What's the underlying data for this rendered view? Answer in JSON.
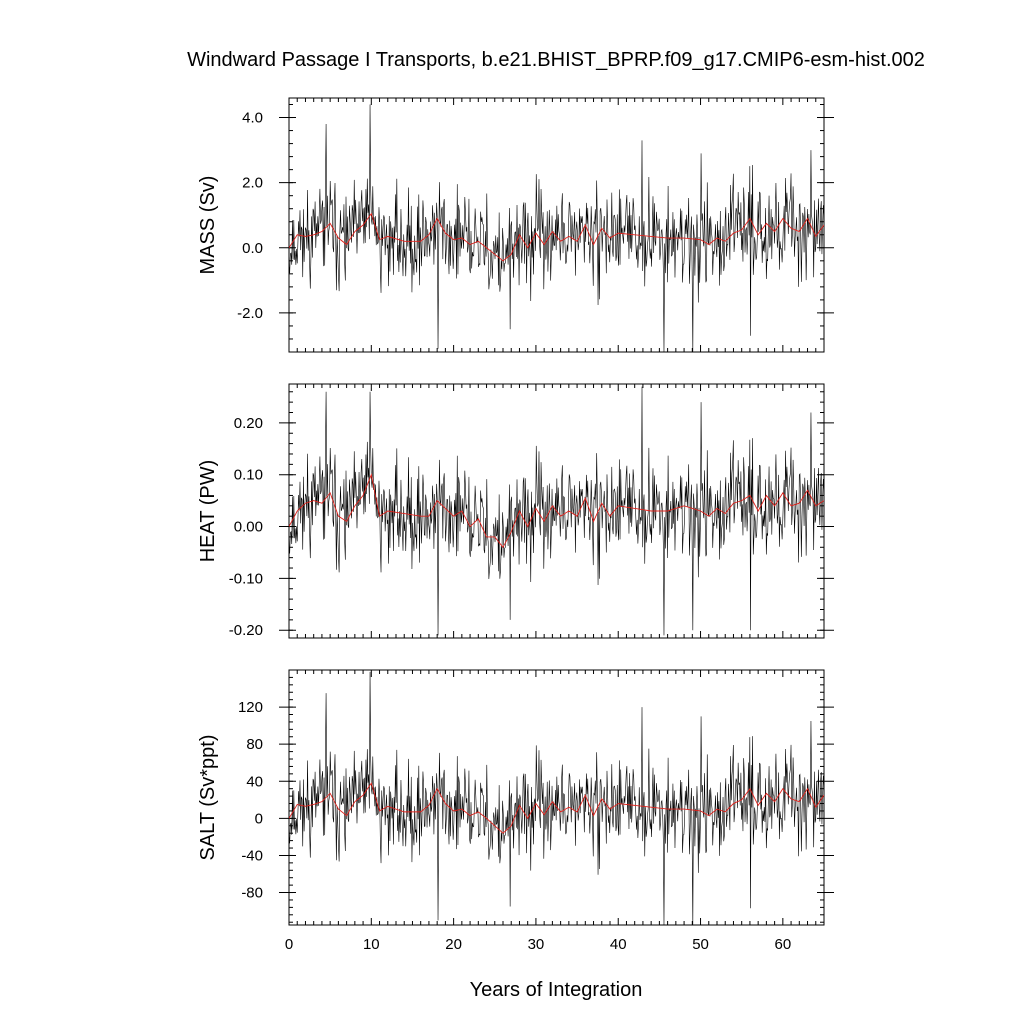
{
  "chart_data": {
    "type": "line",
    "title": "Windward Passage I Transports, b.e21.BHIST_BPRP.f09_g17.CMIP6-esm-hist.002",
    "xlabel": "Years of Integration",
    "xlim": [
      0,
      65
    ],
    "xticks": [
      0,
      10,
      20,
      30,
      40,
      50,
      60
    ],
    "xtick_labels": [
      "0",
      "10",
      "20",
      "30",
      "40",
      "50",
      "60"
    ],
    "colors": {
      "monthly": "#000000",
      "smoothed": "#e0201a"
    },
    "panels": [
      {
        "ylabel": "MASS (Sv)",
        "ylim": [
          -3.2,
          4.6
        ],
        "yticks": [
          -2.0,
          0.0,
          2.0,
          4.0
        ],
        "ytick_labels": [
          "-2.0",
          "0.0",
          "2.0",
          "4.0"
        ],
        "yminor": 0.4,
        "seed": 11,
        "noise_sd": 0.78,
        "spike_hi": [
          3.8,
          4.4,
          3.3,
          2.9,
          3.0
        ],
        "spike_lo": [
          -3.1,
          -3.2,
          -3.2,
          -2.7,
          -2.5
        ],
        "smoothed": {
          "x": [
            0,
            1,
            2,
            3,
            4,
            5,
            6,
            7,
            8,
            9,
            10,
            11,
            12,
            14,
            16,
            17,
            18,
            19,
            20,
            21,
            22,
            23,
            24,
            25,
            26,
            27,
            28,
            29,
            30,
            31,
            32,
            33,
            34,
            35,
            36,
            37,
            38,
            39,
            40,
            42,
            44,
            46,
            48,
            50,
            51,
            52,
            53,
            54,
            55,
            56,
            57,
            58,
            59,
            60,
            61,
            62,
            63,
            64,
            65
          ],
          "y": [
            0.0,
            0.4,
            0.35,
            0.4,
            0.5,
            0.75,
            0.3,
            0.1,
            0.5,
            0.7,
            1.05,
            0.25,
            0.35,
            0.2,
            0.2,
            0.4,
            0.9,
            0.45,
            0.25,
            0.3,
            0.1,
            0.2,
            0.0,
            -0.2,
            -0.4,
            -0.2,
            0.4,
            0.0,
            0.45,
            0.1,
            0.5,
            0.2,
            0.35,
            0.2,
            0.7,
            0.1,
            0.6,
            0.3,
            0.45,
            0.4,
            0.35,
            0.3,
            0.3,
            0.25,
            0.1,
            0.3,
            0.2,
            0.45,
            0.55,
            0.9,
            0.4,
            0.75,
            0.5,
            0.9,
            0.6,
            0.5,
            0.9,
            0.35,
            0.7
          ]
        }
      },
      {
        "ylabel": "HEAT (PW)",
        "ylim": [
          -0.215,
          0.275
        ],
        "yticks": [
          -0.2,
          -0.1,
          0.0,
          0.1,
          0.2
        ],
        "ytick_labels": [
          "-0.20",
          "-0.10",
          "0.00",
          "0.10",
          "0.20"
        ],
        "yminor": 0.02,
        "seed": 11,
        "noise_sd": 0.052,
        "spike_hi": [
          0.26,
          0.26,
          0.27,
          0.24,
          0.22
        ],
        "spike_lo": [
          -0.21,
          -0.21,
          -0.2,
          -0.2,
          -0.18
        ],
        "smoothed": {
          "x": [
            0,
            1,
            2,
            3,
            4,
            5,
            6,
            7,
            8,
            9,
            10,
            11,
            12,
            14,
            16,
            17,
            18,
            19,
            20,
            21,
            22,
            23,
            24,
            25,
            26,
            27,
            28,
            29,
            30,
            31,
            32,
            33,
            34,
            35,
            36,
            37,
            38,
            39,
            40,
            42,
            44,
            46,
            48,
            50,
            51,
            52,
            53,
            54,
            55,
            56,
            57,
            58,
            59,
            60,
            61,
            62,
            63,
            64,
            65
          ],
          "y": [
            0.0,
            0.03,
            0.045,
            0.05,
            0.045,
            0.065,
            0.02,
            0.01,
            0.04,
            0.06,
            0.1,
            0.02,
            0.03,
            0.025,
            0.02,
            0.02,
            0.05,
            0.035,
            0.02,
            0.03,
            0.0,
            0.015,
            -0.02,
            -0.02,
            -0.04,
            -0.01,
            0.03,
            0.0,
            0.035,
            0.01,
            0.04,
            0.02,
            0.03,
            0.02,
            0.055,
            0.01,
            0.045,
            0.02,
            0.04,
            0.035,
            0.03,
            0.03,
            0.04,
            0.03,
            0.02,
            0.035,
            0.025,
            0.045,
            0.05,
            0.06,
            0.03,
            0.06,
            0.04,
            0.065,
            0.04,
            0.045,
            0.07,
            0.04,
            0.05
          ]
        }
      },
      {
        "ylabel": "SALT (Sv*ppt)",
        "ylim": [
          -115,
          160
        ],
        "yticks": [
          -80,
          -40,
          0,
          40,
          80,
          120
        ],
        "ytick_labels": [
          "-80",
          "-40",
          "0",
          "40",
          "80",
          "120"
        ],
        "yminor": 8,
        "seed": 11,
        "noise_sd": 27,
        "spike_hi": [
          135,
          158,
          120,
          110,
          105
        ],
        "spike_lo": [
          -110,
          -115,
          -115,
          -97,
          -95
        ],
        "smoothed": {
          "x": [
            0,
            1,
            2,
            3,
            4,
            5,
            6,
            7,
            8,
            9,
            10,
            11,
            12,
            14,
            16,
            17,
            18,
            19,
            20,
            21,
            22,
            23,
            24,
            25,
            26,
            27,
            28,
            29,
            30,
            31,
            32,
            33,
            34,
            35,
            36,
            37,
            38,
            39,
            40,
            42,
            44,
            46,
            48,
            50,
            51,
            52,
            53,
            54,
            55,
            56,
            57,
            58,
            59,
            60,
            61,
            62,
            63,
            64,
            65
          ],
          "y": [
            0,
            15,
            13,
            15,
            18,
            27,
            10,
            3,
            18,
            25,
            38,
            8,
            13,
            7,
            7,
            14,
            32,
            16,
            8,
            10,
            3,
            7,
            0,
            -8,
            -16,
            -8,
            14,
            0,
            16,
            4,
            18,
            7,
            12,
            7,
            25,
            3,
            21,
            10,
            16,
            14,
            12,
            10,
            10,
            8,
            3,
            10,
            7,
            16,
            20,
            32,
            14,
            27,
            18,
            32,
            21,
            18,
            32,
            12,
            25
          ]
        }
      }
    ]
  }
}
